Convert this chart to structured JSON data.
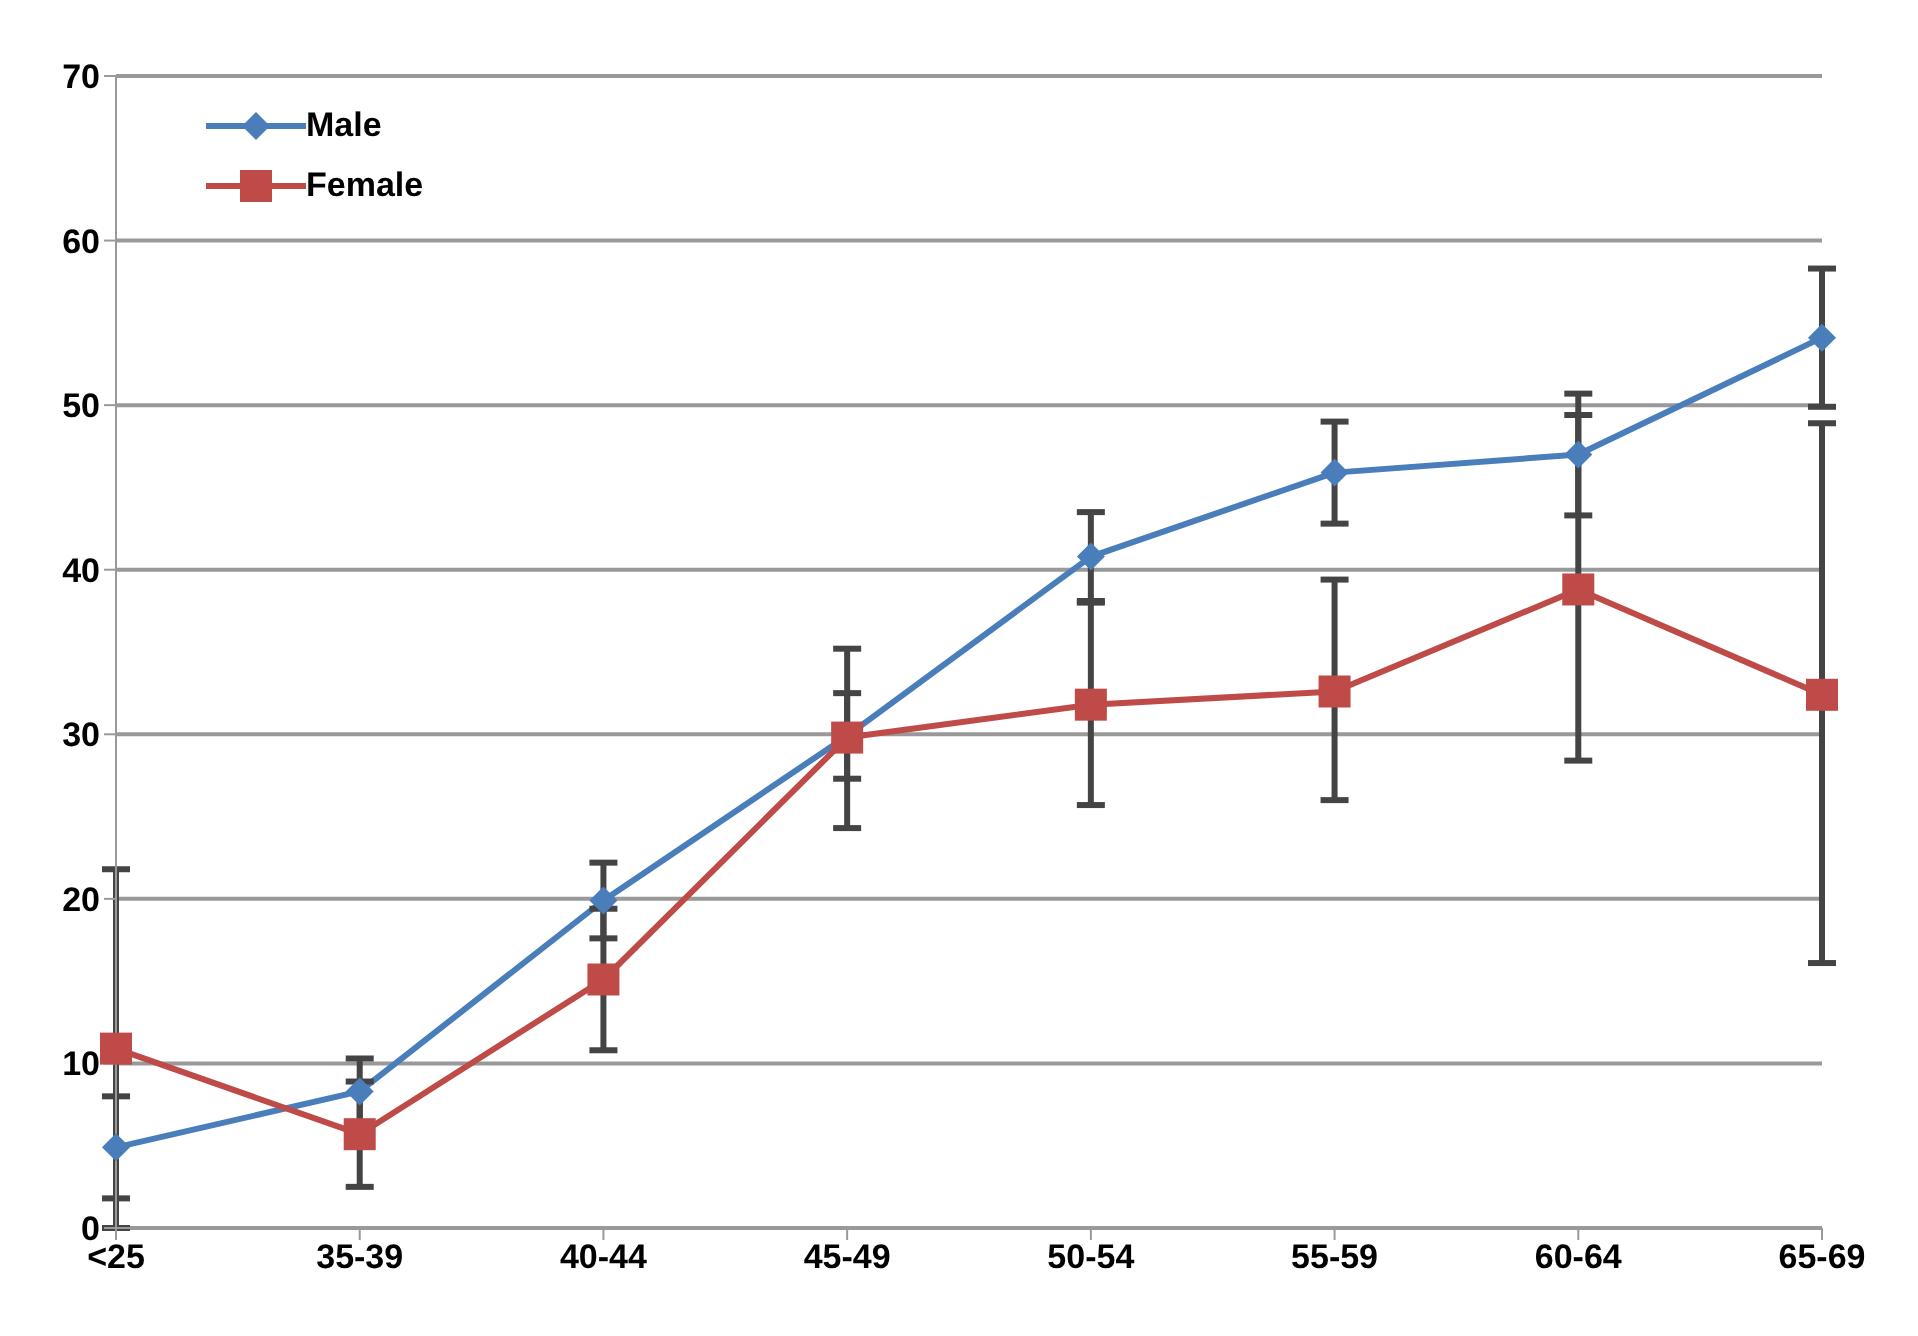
{
  "chart_data": {
    "type": "line",
    "categories": [
      "<25",
      "35-39",
      "40-44",
      "45-49",
      "50-54",
      "55-59",
      "60-64",
      "65-69"
    ],
    "series": [
      {
        "name": "Male",
        "color": "#4a7ebb",
        "marker": "diamond",
        "values": [
          4.9,
          8.3,
          19.9,
          29.9,
          40.8,
          45.9,
          47.0,
          54.1
        ],
        "errors": [
          3.1,
          2.0,
          2.3,
          2.6,
          2.7,
          3.1,
          3.7,
          4.2
        ]
      },
      {
        "name": "Female",
        "color": "#be4b48",
        "marker": "square",
        "values": [
          10.9,
          5.7,
          15.1,
          29.8,
          31.8,
          32.6,
          38.8,
          32.4
        ],
        "errors": [
          [
            0,
            21.8
          ],
          3.2,
          4.3,
          [
            24.3,
            35.2
          ],
          [
            25.7,
            38.0
          ],
          [
            26.0,
            39.4
          ],
          [
            28.4,
            49.4
          ],
          [
            16.1,
            48.9
          ]
        ]
      }
    ],
    "ylim": [
      0,
      70
    ],
    "yticks": [
      0,
      10,
      20,
      30,
      40,
      50,
      60,
      70
    ],
    "grid": "y",
    "legend": "top left",
    "line_style": "solid"
  }
}
